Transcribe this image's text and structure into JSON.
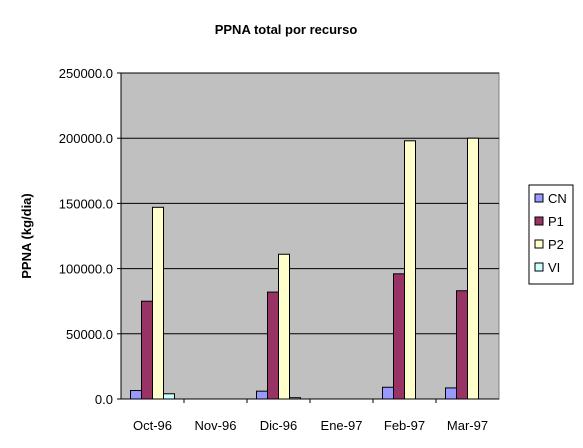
{
  "chart_data": {
    "type": "bar",
    "title": "PPNA total por recurso",
    "xlabel": "",
    "ylabel": "PPNA (kg/dia)",
    "ylim": [
      0,
      250000
    ],
    "yticks": [
      "0.0",
      "50000.0",
      "100000.0",
      "150000.0",
      "200000.0",
      "250000.0"
    ],
    "categories": [
      "Oct-96",
      "Nov-96",
      "Dic-96",
      "Ene-97",
      "Feb-97",
      "Mar-97"
    ],
    "series": [
      {
        "name": "CN",
        "color": "#9999ff",
        "values": [
          6500,
          0,
          6000,
          0,
          9000,
          8500
        ]
      },
      {
        "name": "P1",
        "color": "#993366",
        "values": [
          75000,
          0,
          82000,
          0,
          96000,
          83000
        ]
      },
      {
        "name": "P2",
        "color": "#ffffcc",
        "values": [
          147000,
          0,
          111000,
          0,
          198000,
          200000
        ]
      },
      {
        "name": "VI",
        "color": "#ccffff",
        "values": [
          4000,
          0,
          1000,
          0,
          0,
          0
        ]
      }
    ],
    "grid": "horizontal",
    "plot_background": "#c0c0c0",
    "legend_position": "right"
  }
}
